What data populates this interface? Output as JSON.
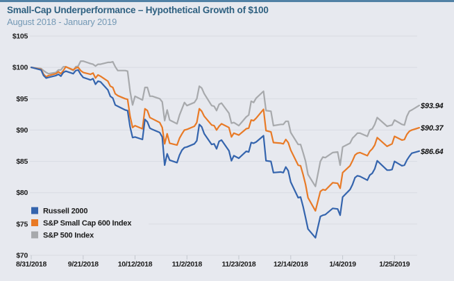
{
  "page": {
    "title": "Small-Cap Underperformance – Hypothetical Growth of $100",
    "subtitle": "August 2018 - January 2019"
  },
  "colors": {
    "background": "#e7e9ef",
    "top_accent_bar": "#5181a5",
    "title_text": "#2e6080",
    "subtitle_text": "#7499b5",
    "grid": "#d8dbe2",
    "tick": "#c2c6cd",
    "axis_text": "#1b1b1b",
    "russell_blue": "#3464ad",
    "sp600_orange": "#e87a26",
    "sp500_gray": "#a7a9ac"
  },
  "chart_data": {
    "type": "line",
    "title": "Small-Cap Underperformance – Hypothetical Growth of $100",
    "subtitle": "August 2018 - January 2019",
    "xlabel": "",
    "ylabel": "",
    "ylim": [
      70,
      105
    ],
    "grid": "horizontal",
    "legend_position": "inside-bottom-left",
    "y_ticks": [
      {
        "value": 105,
        "label": "$105"
      },
      {
        "value": 100,
        "label": "$100"
      },
      {
        "value": 95,
        "label": "$95"
      },
      {
        "value": 90,
        "label": "$90"
      },
      {
        "value": 85,
        "label": "$85"
      },
      {
        "value": 80,
        "label": "$80"
      },
      {
        "value": 75,
        "label": "$75"
      },
      {
        "value": 70,
        "label": "$70"
      }
    ],
    "x_ticks": [
      {
        "label": "8/31/2018",
        "day_offset": 0
      },
      {
        "label": "9/21/2018",
        "day_offset": 21
      },
      {
        "label": "10/12/2018",
        "day_offset": 42
      },
      {
        "label": "11/2/2018",
        "day_offset": 63
      },
      {
        "label": "11/23/2018",
        "day_offset": 84
      },
      {
        "label": "12/14/2018",
        "day_offset": 105
      },
      {
        "label": "1/4/2019",
        "day_offset": 126
      },
      {
        "label": "1/25/2019",
        "day_offset": 147
      }
    ],
    "x_day_offsets": [
      0,
      4,
      5,
      6,
      7,
      10,
      11,
      12,
      13,
      14,
      17,
      18,
      19,
      20,
      21,
      24,
      25,
      26,
      27,
      28,
      31,
      32,
      33,
      34,
      35,
      38,
      39,
      40,
      41,
      42,
      45,
      46,
      47,
      48,
      49,
      52,
      53,
      54,
      55,
      56,
      59,
      60,
      61,
      62,
      63,
      66,
      67,
      68,
      69,
      70,
      73,
      74,
      75,
      76,
      77,
      80,
      81,
      82,
      84,
      87,
      88,
      89,
      90,
      91,
      94,
      95,
      97,
      98,
      101,
      102,
      103,
      104,
      105,
      108,
      109,
      110,
      111,
      112,
      115,
      117,
      118,
      119,
      122,
      124,
      125,
      126,
      129,
      130,
      131,
      132,
      133,
      136,
      137,
      138,
      139,
      140,
      144,
      145,
      146,
      147,
      150,
      151,
      152,
      153,
      154,
      157
    ],
    "series": [
      {
        "name": "Russell 2000",
        "color": "#3464ad",
        "end_label": "$86.64",
        "end_value": 86.64,
        "values": [
          100.0,
          99.6,
          98.7,
          98.3,
          98.4,
          98.7,
          98.9,
          98.6,
          99.2,
          99.4,
          99.0,
          99.5,
          99.6,
          98.9,
          98.4,
          98.0,
          98.2,
          97.3,
          97.8,
          97.7,
          96.4,
          95.4,
          95.1,
          94.0,
          93.8,
          93.2,
          93.1,
          90.5,
          88.8,
          88.9,
          88.5,
          91.7,
          91.3,
          90.3,
          90.1,
          89.6,
          88.9,
          84.4,
          86.2,
          85.2,
          84.8,
          86.0,
          86.8,
          87.2,
          87.3,
          87.8,
          88.3,
          90.9,
          90.5,
          89.4,
          87.7,
          87.8,
          87.0,
          88.2,
          88.4,
          86.7,
          85.1,
          85.9,
          85.5,
          86.6,
          86.5,
          88.0,
          87.9,
          88.1,
          89.1,
          85.1,
          85.0,
          83.2,
          83.3,
          83.2,
          84.1,
          83.5,
          81.7,
          79.2,
          79.3,
          77.8,
          76.0,
          74.2,
          72.8,
          76.2,
          76.4,
          76.5,
          77.5,
          77.4,
          76.4,
          79.3,
          80.5,
          81.3,
          82.4,
          82.7,
          82.6,
          82.0,
          82.8,
          83.1,
          83.8,
          85.1,
          83.6,
          83.6,
          83.7,
          85.0,
          84.3,
          84.4,
          85.2,
          85.8,
          86.3,
          86.64
        ]
      },
      {
        "name": "S&P Small Cap 600 Index",
        "color": "#e87a26",
        "end_label": "$90.37",
        "end_value": 90.37,
        "values": [
          100.0,
          99.7,
          98.9,
          98.5,
          98.7,
          99.0,
          99.3,
          99.0,
          99.5,
          100.1,
          99.6,
          99.9,
          100.0,
          99.5,
          99.2,
          98.9,
          99.1,
          98.3,
          98.8,
          98.6,
          97.8,
          97.0,
          96.8,
          95.8,
          95.5,
          95.0,
          94.9,
          92.2,
          90.4,
          90.7,
          90.2,
          93.4,
          93.1,
          92.0,
          91.8,
          91.2,
          90.4,
          87.8,
          89.4,
          87.9,
          87.6,
          88.7,
          89.4,
          90.0,
          90.1,
          90.6,
          91.2,
          93.4,
          93.0,
          92.2,
          90.8,
          90.7,
          90.0,
          90.6,
          91.0,
          90.4,
          88.9,
          89.5,
          89.2,
          90.2,
          90.3,
          91.6,
          91.5,
          91.9,
          93.3,
          89.9,
          89.7,
          88.0,
          87.9,
          87.8,
          88.5,
          88.0,
          86.8,
          84.4,
          84.3,
          82.9,
          81.3,
          79.2,
          77.1,
          80.2,
          80.5,
          80.4,
          81.6,
          81.5,
          80.7,
          83.2,
          84.3,
          85.1,
          86.0,
          86.3,
          86.4,
          85.9,
          86.6,
          87.0,
          87.6,
          88.8,
          87.4,
          87.6,
          87.8,
          89.0,
          88.4,
          88.5,
          89.3,
          89.8,
          90.0,
          90.37
        ]
      },
      {
        "name": "S&P 500 Index",
        "color": "#a7a9ac",
        "end_label": "$93.94",
        "end_value": 93.94,
        "values": [
          100.0,
          99.8,
          99.5,
          99.2,
          99.0,
          99.2,
          99.6,
          99.6,
          100.1,
          100.1,
          99.5,
          100.1,
          100.2,
          101.0,
          101.0,
          100.6,
          100.5,
          100.2,
          100.5,
          100.5,
          100.8,
          100.8,
          100.9,
          100.1,
          99.5,
          99.5,
          99.4,
          96.2,
          94.0,
          95.4,
          94.8,
          96.8,
          96.8,
          95.4,
          95.4,
          95.0,
          94.5,
          91.5,
          93.2,
          91.6,
          91.0,
          92.4,
          93.4,
          94.4,
          93.9,
          94.4,
          95.0,
          97.0,
          96.7,
          95.8,
          93.9,
          93.8,
          93.1,
          94.1,
          94.3,
          92.7,
          91.1,
          91.2,
          90.7,
          92.1,
          92.4,
          94.6,
          94.4,
          95.1,
          96.2,
          93.1,
          93.0,
          90.7,
          90.9,
          90.9,
          91.4,
          91.4,
          89.6,
          87.7,
          87.7,
          86.4,
          85.0,
          82.9,
          81.0,
          85.0,
          85.7,
          85.6,
          86.4,
          86.5,
          84.4,
          87.3,
          87.9,
          88.7,
          89.1,
          89.5,
          89.5,
          89.0,
          90.0,
          90.2,
          90.9,
          92.0,
          90.6,
          90.7,
          90.8,
          91.6,
          90.9,
          90.8,
          92.2,
          93.0,
          93.2,
          93.94
        ]
      }
    ]
  }
}
